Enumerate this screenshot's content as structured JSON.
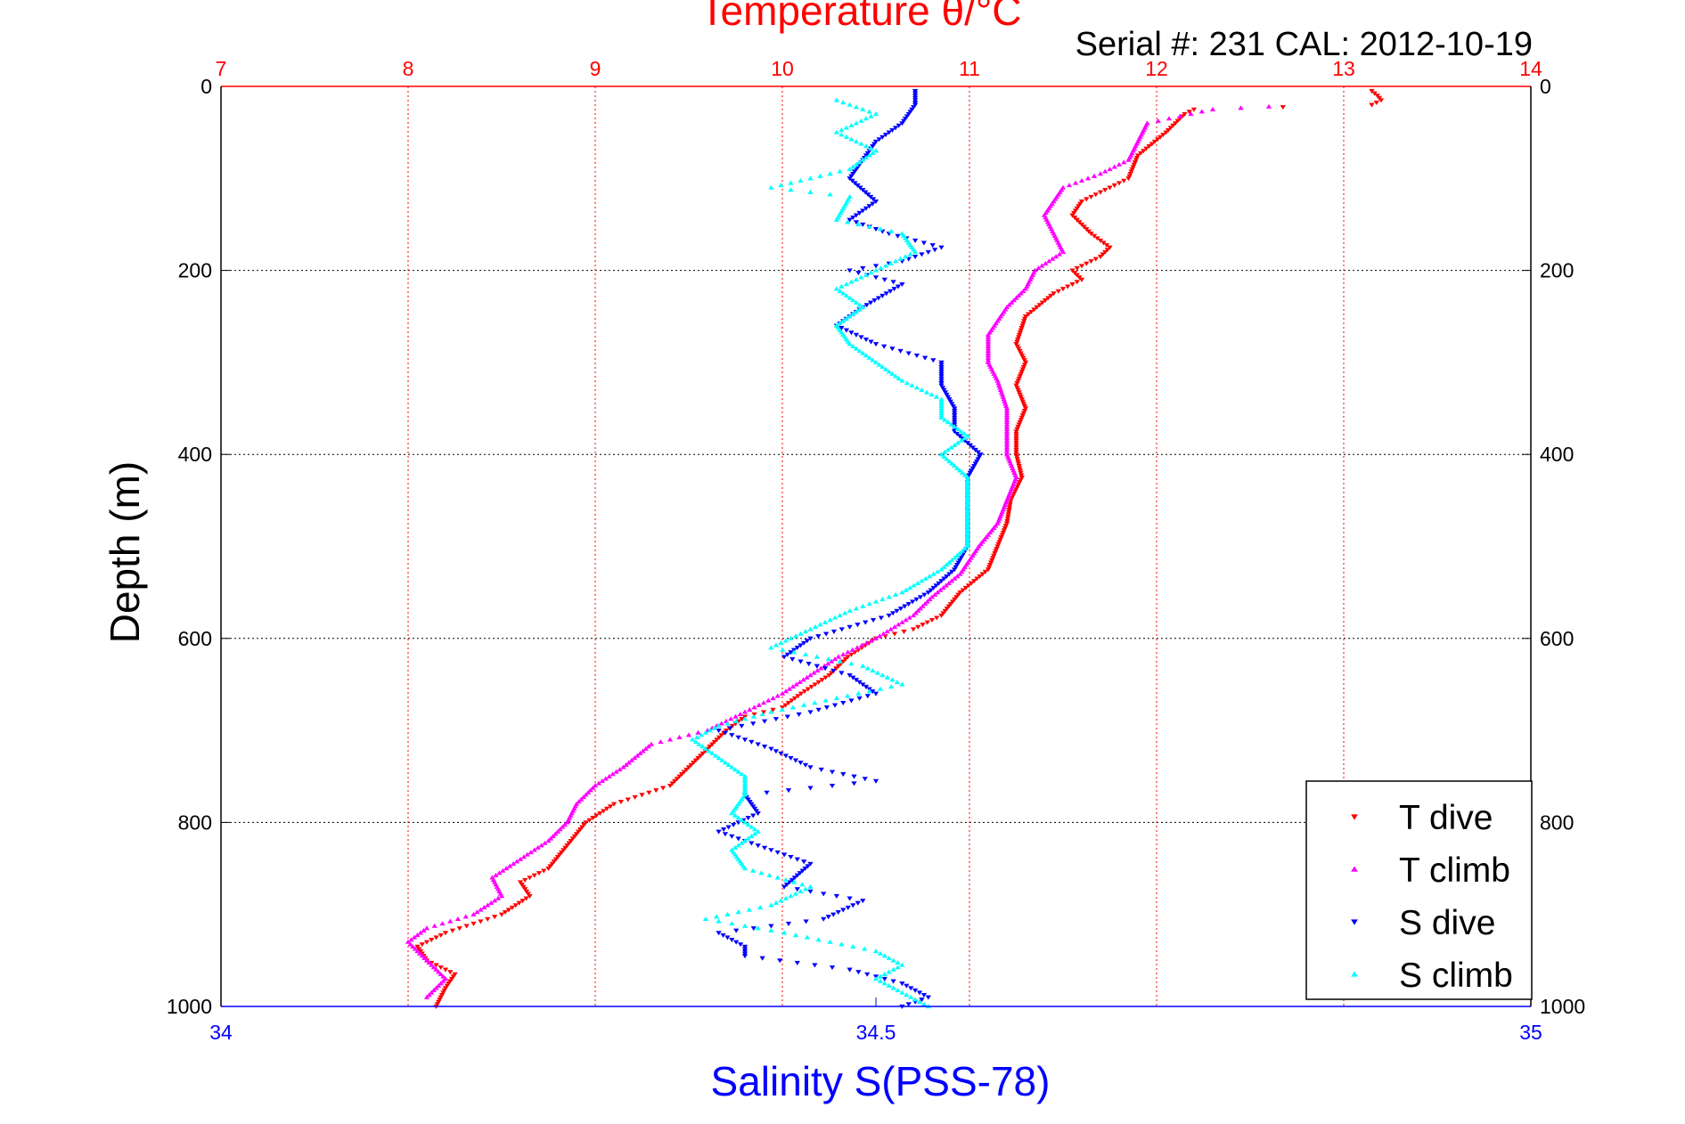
{
  "chart_data": {
    "type": "scatter",
    "title": "Temperature θ/°C",
    "subtitle": "Serial #: 231  CAL: 2012-10-19",
    "ylabel": "Depth (m)",
    "x_top_label": "Temperature θ/°C",
    "x_bottom_label": "Salinity S(PSS-78)",
    "ylim": [
      0,
      1000
    ],
    "y_reversed": true,
    "y_ticks": [
      0,
      200,
      400,
      600,
      800,
      1000
    ],
    "temperature_axis": {
      "lim": [
        7,
        14
      ],
      "ticks": [
        7,
        8,
        9,
        10,
        11,
        12,
        13,
        14
      ]
    },
    "salinity_axis": {
      "lim": [
        34,
        35
      ],
      "ticks": [
        34,
        34.5,
        35
      ],
      "tick_labels": [
        "34",
        "34.5",
        "35"
      ]
    },
    "grid": true,
    "legend_position": "bottom-right",
    "colors": {
      "temperature_axis": "#ff0000",
      "salinity_axis": "#0000ff",
      "T dive": "#ff0000",
      "T climb": "#ff00ff",
      "S dive": "#0000ff",
      "S climb": "#00ffff",
      "grid": "#000000",
      "text": "#000000"
    },
    "series": [
      {
        "name": "T dive",
        "axis": "temperature",
        "marker": "triangle-down",
        "points": [
          [
            13.15,
            5
          ],
          [
            13.18,
            10
          ],
          [
            13.2,
            15
          ],
          [
            13.15,
            20
          ],
          [
            12.2,
            25
          ],
          [
            12.15,
            30
          ],
          [
            12.05,
            50
          ],
          [
            11.9,
            75
          ],
          [
            11.85,
            100
          ],
          [
            11.6,
            125
          ],
          [
            11.55,
            140
          ],
          [
            11.65,
            160
          ],
          [
            11.75,
            175
          ],
          [
            11.7,
            185
          ],
          [
            11.55,
            200
          ],
          [
            11.6,
            210
          ],
          [
            11.45,
            225
          ],
          [
            11.3,
            250
          ],
          [
            11.25,
            280
          ],
          [
            11.3,
            300
          ],
          [
            11.25,
            325
          ],
          [
            11.3,
            350
          ],
          [
            11.25,
            375
          ],
          [
            11.25,
            400
          ],
          [
            11.28,
            425
          ],
          [
            11.22,
            450
          ],
          [
            11.2,
            475
          ],
          [
            11.15,
            500
          ],
          [
            11.1,
            525
          ],
          [
            10.95,
            550
          ],
          [
            10.85,
            575
          ],
          [
            10.7,
            590
          ],
          [
            10.5,
            600
          ],
          [
            10.35,
            620
          ],
          [
            10.25,
            640
          ],
          [
            10.1,
            660
          ],
          [
            10.0,
            675
          ],
          [
            9.8,
            685
          ],
          [
            9.7,
            700
          ],
          [
            9.6,
            720
          ],
          [
            9.5,
            740
          ],
          [
            9.4,
            760
          ],
          [
            9.1,
            780
          ],
          [
            8.95,
            800
          ],
          [
            8.85,
            825
          ],
          [
            8.75,
            850
          ],
          [
            8.6,
            865
          ],
          [
            8.65,
            880
          ],
          [
            8.5,
            900
          ],
          [
            8.2,
            920
          ],
          [
            8.05,
            935
          ],
          [
            8.1,
            950
          ],
          [
            8.25,
            965
          ],
          [
            8.2,
            980
          ],
          [
            8.15,
            1000
          ]
        ]
      },
      {
        "name": "T climb",
        "axis": "temperature",
        "marker": "triangle-up",
        "points": [
          [
            12.6,
            22
          ],
          [
            12.3,
            25
          ],
          [
            11.95,
            40
          ],
          [
            11.9,
            60
          ],
          [
            11.85,
            80
          ],
          [
            11.7,
            95
          ],
          [
            11.5,
            110
          ],
          [
            11.45,
            125
          ],
          [
            11.4,
            140
          ],
          [
            11.45,
            160
          ],
          [
            11.5,
            180
          ],
          [
            11.35,
            200
          ],
          [
            11.3,
            220
          ],
          [
            11.2,
            240
          ],
          [
            11.1,
            270
          ],
          [
            11.1,
            300
          ],
          [
            11.15,
            320
          ],
          [
            11.2,
            350
          ],
          [
            11.2,
            375
          ],
          [
            11.2,
            400
          ],
          [
            11.25,
            425
          ],
          [
            11.2,
            450
          ],
          [
            11.15,
            475
          ],
          [
            11.05,
            500
          ],
          [
            10.95,
            530
          ],
          [
            10.8,
            555
          ],
          [
            10.7,
            575
          ],
          [
            10.5,
            600
          ],
          [
            10.3,
            620
          ],
          [
            10.15,
            640
          ],
          [
            10.0,
            660
          ],
          [
            9.8,
            680
          ],
          [
            9.6,
            700
          ],
          [
            9.3,
            715
          ],
          [
            9.15,
            740
          ],
          [
            9.0,
            760
          ],
          [
            8.9,
            780
          ],
          [
            8.85,
            800
          ],
          [
            8.75,
            820
          ],
          [
            8.6,
            840
          ],
          [
            8.45,
            860
          ],
          [
            8.5,
            880
          ],
          [
            8.35,
            900
          ],
          [
            8.1,
            915
          ],
          [
            8.0,
            930
          ],
          [
            8.1,
            950
          ],
          [
            8.2,
            970
          ],
          [
            8.1,
            990
          ]
        ]
      },
      {
        "name": "S dive",
        "axis": "salinity",
        "marker": "triangle-down",
        "points": [
          [
            34.53,
            5
          ],
          [
            34.53,
            20
          ],
          [
            34.52,
            40
          ],
          [
            34.5,
            60
          ],
          [
            34.49,
            80
          ],
          [
            34.48,
            100
          ],
          [
            34.5,
            125
          ],
          [
            34.48,
            145
          ],
          [
            34.51,
            160
          ],
          [
            34.55,
            175
          ],
          [
            34.52,
            190
          ],
          [
            34.48,
            200
          ],
          [
            34.52,
            215
          ],
          [
            34.49,
            240
          ],
          [
            34.47,
            260
          ],
          [
            34.5,
            280
          ],
          [
            34.55,
            300
          ],
          [
            34.55,
            325
          ],
          [
            34.56,
            350
          ],
          [
            34.56,
            375
          ],
          [
            34.58,
            400
          ],
          [
            34.57,
            425
          ],
          [
            34.57,
            450
          ],
          [
            34.57,
            475
          ],
          [
            34.57,
            500
          ],
          [
            34.56,
            525
          ],
          [
            34.54,
            550
          ],
          [
            34.51,
            575
          ],
          [
            34.45,
            600
          ],
          [
            34.43,
            620
          ],
          [
            34.48,
            640
          ],
          [
            34.5,
            660
          ],
          [
            34.45,
            680
          ],
          [
            34.38,
            700
          ],
          [
            34.42,
            720
          ],
          [
            34.45,
            740
          ],
          [
            34.5,
            755
          ],
          [
            34.4,
            770
          ],
          [
            34.41,
            790
          ],
          [
            34.38,
            810
          ],
          [
            34.42,
            830
          ],
          [
            34.45,
            845
          ],
          [
            34.43,
            870
          ],
          [
            34.49,
            885
          ],
          [
            34.46,
            905
          ],
          [
            34.38,
            920
          ],
          [
            34.4,
            935
          ],
          [
            34.4,
            945
          ],
          [
            34.48,
            960
          ],
          [
            34.52,
            975
          ],
          [
            34.54,
            990
          ],
          [
            34.52,
            1000
          ]
        ]
      },
      {
        "name": "S climb",
        "axis": "salinity",
        "marker": "triangle-up",
        "points": [
          [
            34.47,
            15
          ],
          [
            34.5,
            30
          ],
          [
            34.47,
            50
          ],
          [
            34.5,
            70
          ],
          [
            34.48,
            90
          ],
          [
            34.42,
            110
          ],
          [
            34.48,
            120
          ],
          [
            34.47,
            145
          ],
          [
            34.52,
            160
          ],
          [
            34.53,
            180
          ],
          [
            34.5,
            200
          ],
          [
            34.47,
            220
          ],
          [
            34.49,
            240
          ],
          [
            34.47,
            260
          ],
          [
            34.48,
            280
          ],
          [
            34.5,
            300
          ],
          [
            34.52,
            320
          ],
          [
            34.55,
            340
          ],
          [
            34.55,
            360
          ],
          [
            34.57,
            380
          ],
          [
            34.55,
            400
          ],
          [
            34.57,
            425
          ],
          [
            34.57,
            450
          ],
          [
            34.57,
            475
          ],
          [
            34.57,
            500
          ],
          [
            34.55,
            525
          ],
          [
            34.52,
            550
          ],
          [
            34.48,
            570
          ],
          [
            34.45,
            590
          ],
          [
            34.42,
            610
          ],
          [
            34.49,
            630
          ],
          [
            34.52,
            650
          ],
          [
            34.47,
            665
          ],
          [
            34.42,
            680
          ],
          [
            34.38,
            695
          ],
          [
            34.36,
            710
          ],
          [
            34.38,
            730
          ],
          [
            34.4,
            750
          ],
          [
            34.4,
            770
          ],
          [
            34.39,
            790
          ],
          [
            34.41,
            810
          ],
          [
            34.39,
            830
          ],
          [
            34.4,
            850
          ],
          [
            34.45,
            870
          ],
          [
            34.42,
            890
          ],
          [
            34.37,
            905
          ],
          [
            34.43,
            920
          ],
          [
            34.5,
            940
          ],
          [
            34.52,
            955
          ],
          [
            34.5,
            970
          ],
          [
            34.52,
            985
          ],
          [
            34.54,
            1000
          ]
        ]
      }
    ]
  }
}
